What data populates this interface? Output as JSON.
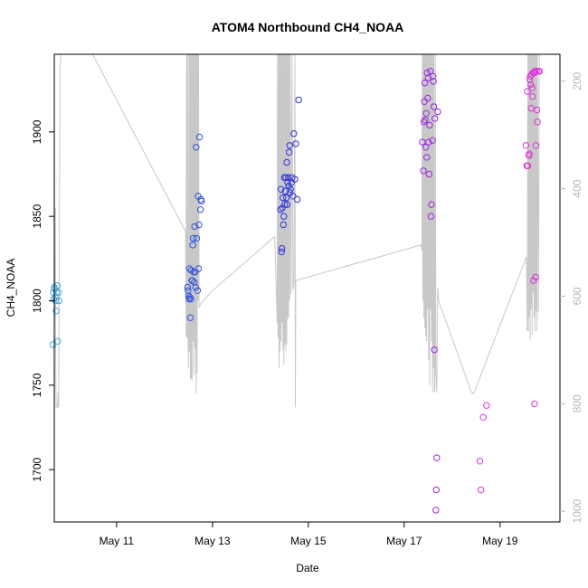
{
  "chart_data": {
    "type": "scatter",
    "title": "ATOM4 Northbound CH4_NOAA",
    "xlabel": "Date",
    "ylabel": "CH4_NOAA",
    "xlim": [
      9.7,
      20.25
    ],
    "ylim": [
      1669,
      1946
    ],
    "y2lim": [
      1020,
      150
    ],
    "x_ticks": [
      {
        "value": 11,
        "label": "May 11"
      },
      {
        "value": 13,
        "label": "May 13"
      },
      {
        "value": 15,
        "label": "May 15"
      },
      {
        "value": 17,
        "label": "May 17"
      },
      {
        "value": 19,
        "label": "May 19"
      }
    ],
    "y_ticks": [
      1700,
      1750,
      1800,
      1850,
      1900
    ],
    "y2_ticks": [
      200,
      400,
      600,
      800,
      1000
    ],
    "colors": {
      "May 10": "#3fa7e0",
      "May 12": "#2f52e0",
      "May 14": "#2f33e0",
      "May 17": "#9c28e0",
      "May 19": "#e030d8",
      "pressure_line": "#c8c8c8"
    },
    "series": [
      {
        "color": "#3fa7e0",
        "points": [
          [
            9.67,
            1774
          ],
          [
            9.68,
            1805
          ],
          [
            9.69,
            1801
          ],
          [
            9.7,
            1808
          ],
          [
            9.71,
            1807
          ],
          [
            9.72,
            1802
          ],
          [
            9.73,
            1800
          ],
          [
            9.74,
            1794
          ],
          [
            9.75,
            1805
          ],
          [
            9.76,
            1809
          ],
          [
            9.77,
            1776
          ],
          [
            9.79,
            1805
          ],
          [
            9.8,
            1800
          ]
        ]
      },
      {
        "color": "#2f52e0",
        "points": [
          [
            12.48,
            1808
          ],
          [
            12.49,
            1806
          ],
          [
            12.5,
            1803
          ],
          [
            12.51,
            1801
          ],
          [
            12.52,
            1819
          ],
          [
            12.53,
            1802
          ],
          [
            12.54,
            1790
          ],
          [
            12.55,
            1801
          ],
          [
            12.56,
            1818
          ],
          [
            12.57,
            1812
          ],
          [
            12.58,
            1812
          ],
          [
            12.59,
            1833
          ],
          [
            12.6,
            1837
          ],
          [
            12.61,
            1817
          ],
          [
            12.62,
            1811
          ],
          [
            12.63,
            1844
          ],
          [
            12.64,
            1817
          ],
          [
            12.65,
            1808
          ],
          [
            12.66,
            1891
          ],
          [
            12.67,
            1837
          ],
          [
            12.69,
            1806
          ],
          [
            12.7,
            1862
          ],
          [
            12.71,
            1819
          ],
          [
            12.72,
            1845
          ],
          [
            12.73,
            1897
          ],
          [
            12.75,
            1854
          ],
          [
            12.76,
            1860
          ],
          [
            12.77,
            1859
          ]
        ]
      },
      {
        "color": "#2f33e0",
        "points": [
          [
            14.42,
            1854
          ],
          [
            14.43,
            1866
          ],
          [
            14.44,
            1829
          ],
          [
            14.45,
            1831
          ],
          [
            14.46,
            1855
          ],
          [
            14.47,
            1861
          ],
          [
            14.48,
            1845
          ],
          [
            14.49,
            1850
          ],
          [
            14.5,
            1873
          ],
          [
            14.51,
            1857
          ],
          [
            14.52,
            1865
          ],
          [
            14.53,
            1873
          ],
          [
            14.54,
            1861
          ],
          [
            14.55,
            1882
          ],
          [
            14.56,
            1857
          ],
          [
            14.57,
            1870
          ],
          [
            14.58,
            1873
          ],
          [
            14.59,
            1868
          ],
          [
            14.6,
            1888
          ],
          [
            14.61,
            1892
          ],
          [
            14.62,
            1864
          ],
          [
            14.63,
            1866
          ],
          [
            14.65,
            1870
          ],
          [
            14.66,
            1873
          ],
          [
            14.68,
            1862
          ],
          [
            14.7,
            1899
          ],
          [
            14.72,
            1872
          ],
          [
            14.74,
            1893
          ],
          [
            14.77,
            1860
          ],
          [
            14.8,
            1919
          ]
        ]
      },
      {
        "color": "#9c28e0",
        "points": [
          [
            17.38,
            1894
          ],
          [
            17.4,
            1877
          ],
          [
            17.41,
            1906
          ],
          [
            17.42,
            1918
          ],
          [
            17.43,
            1929
          ],
          [
            17.44,
            1907
          ],
          [
            17.45,
            1891
          ],
          [
            17.46,
            1911
          ],
          [
            17.47,
            1885
          ],
          [
            17.48,
            1935
          ],
          [
            17.49,
            1920
          ],
          [
            17.5,
            1932
          ],
          [
            17.51,
            1894
          ],
          [
            17.52,
            1875
          ],
          [
            17.53,
            1904
          ],
          [
            17.55,
            1936
          ],
          [
            17.56,
            1850
          ],
          [
            17.57,
            1857
          ],
          [
            17.59,
            1895
          ],
          [
            17.6,
            1933
          ],
          [
            17.61,
            1930
          ],
          [
            17.62,
            1915
          ],
          [
            17.63,
            1771
          ],
          [
            17.64,
            1908
          ],
          [
            17.66,
            1676
          ],
          [
            17.67,
            1688
          ],
          [
            17.68,
            1707
          ],
          [
            17.7,
            1912
          ]
        ]
      },
      {
        "color": "#e030d8",
        "points": [
          [
            18.58,
            1705
          ],
          [
            18.6,
            1688
          ],
          [
            18.65,
            1731
          ],
          [
            18.72,
            1738
          ],
          [
            19.54,
            1892
          ],
          [
            19.56,
            1880
          ],
          [
            19.57,
            1924
          ],
          [
            19.58,
            1880
          ],
          [
            19.6,
            1886
          ],
          [
            19.61,
            1887
          ],
          [
            19.62,
            1931
          ],
          [
            19.63,
            1933
          ],
          [
            19.64,
            1928
          ],
          [
            19.65,
            1914
          ],
          [
            19.66,
            1934
          ],
          [
            19.67,
            1926
          ],
          [
            19.68,
            1921
          ],
          [
            19.69,
            1935
          ],
          [
            19.7,
            1812
          ],
          [
            19.71,
            1935
          ],
          [
            19.72,
            1739
          ],
          [
            19.73,
            1936
          ],
          [
            19.74,
            1814
          ],
          [
            19.75,
            1892
          ],
          [
            19.76,
            1936
          ],
          [
            19.77,
            1913
          ],
          [
            19.78,
            1906
          ],
          [
            19.8,
            1936
          ],
          [
            19.82,
            1936
          ]
        ]
      }
    ],
    "pressure_line": [
      [
        9.65,
        1874
      ],
      [
        9.66,
        1760
      ],
      [
        9.67,
        1840
      ],
      [
        9.68,
        1746
      ],
      [
        9.69,
        1815
      ],
      [
        9.7,
        1937
      ],
      [
        9.71,
        1790
      ],
      [
        9.72,
        1855
      ],
      [
        9.73,
        1760
      ],
      [
        9.74,
        1737
      ],
      [
        9.75,
        1737
      ],
      [
        9.76,
        1737
      ],
      [
        9.77,
        1737
      ],
      [
        9.78,
        1746
      ],
      [
        9.79,
        1737
      ],
      [
        9.8,
        1790
      ],
      [
        9.82,
        1940
      ],
      [
        9.84,
        1946
      ],
      [
        10.2,
        1946
      ],
      [
        10.5,
        1946
      ],
      [
        12.44,
        1841
      ],
      [
        12.45,
        1779
      ],
      [
        12.46,
        1946
      ],
      [
        12.47,
        1778
      ],
      [
        12.48,
        1946
      ],
      [
        12.49,
        1781
      ],
      [
        12.5,
        1760
      ],
      [
        12.51,
        1946
      ],
      [
        12.52,
        1770
      ],
      [
        12.53,
        1946
      ],
      [
        12.54,
        1753
      ],
      [
        12.55,
        1946
      ],
      [
        12.56,
        1754
      ],
      [
        12.57,
        1946
      ],
      [
        12.58,
        1753
      ],
      [
        12.59,
        1946
      ],
      [
        12.6,
        1776
      ],
      [
        12.61,
        1946
      ],
      [
        12.62,
        1756
      ],
      [
        12.63,
        1946
      ],
      [
        12.64,
        1772
      ],
      [
        12.65,
        1946
      ],
      [
        12.66,
        1745
      ],
      [
        12.67,
        1946
      ],
      [
        12.68,
        1757
      ],
      [
        12.69,
        1946
      ],
      [
        12.7,
        1800
      ],
      [
        12.71,
        1946
      ],
      [
        12.72,
        1796
      ],
      [
        12.75,
        1798
      ],
      [
        12.8,
        1800
      ],
      [
        13.0,
        1806
      ],
      [
        14.3,
        1838
      ],
      [
        14.35,
        1787
      ],
      [
        14.36,
        1946
      ],
      [
        14.37,
        1778
      ],
      [
        14.38,
        1946
      ],
      [
        14.39,
        1760
      ],
      [
        14.4,
        1946
      ],
      [
        14.41,
        1770
      ],
      [
        14.42,
        1946
      ],
      [
        14.43,
        1776
      ],
      [
        14.44,
        1946
      ],
      [
        14.45,
        1787
      ],
      [
        14.46,
        1946
      ],
      [
        14.47,
        1771
      ],
      [
        14.48,
        1946
      ],
      [
        14.49,
        1762
      ],
      [
        14.5,
        1946
      ],
      [
        14.51,
        1774
      ],
      [
        14.52,
        1946
      ],
      [
        14.53,
        1770
      ],
      [
        14.54,
        1946
      ],
      [
        14.55,
        1774
      ],
      [
        14.56,
        1946
      ],
      [
        14.57,
        1789
      ],
      [
        14.58,
        1946
      ],
      [
        14.59,
        1790
      ],
      [
        14.6,
        1946
      ],
      [
        14.61,
        1800
      ],
      [
        14.62,
        1946
      ],
      [
        14.64,
        1804
      ],
      [
        14.66,
        1946
      ],
      [
        14.68,
        1806
      ],
      [
        14.7,
        1810
      ],
      [
        14.72,
        1946
      ],
      [
        14.73,
        1737
      ],
      [
        14.74,
        1812
      ],
      [
        17.35,
        1833
      ],
      [
        17.37,
        1830
      ],
      [
        17.38,
        1946
      ],
      [
        17.39,
        1800
      ],
      [
        17.4,
        1946
      ],
      [
        17.41,
        1790
      ],
      [
        17.42,
        1946
      ],
      [
        17.43,
        1784
      ],
      [
        17.44,
        1946
      ],
      [
        17.45,
        1779
      ],
      [
        17.46,
        1946
      ],
      [
        17.47,
        1776
      ],
      [
        17.48,
        1946
      ],
      [
        17.49,
        1795
      ],
      [
        17.5,
        1946
      ],
      [
        17.51,
        1765
      ],
      [
        17.52,
        1946
      ],
      [
        17.53,
        1750
      ],
      [
        17.54,
        1946
      ],
      [
        17.55,
        1795
      ],
      [
        17.56,
        1946
      ],
      [
        17.57,
        1776
      ],
      [
        17.58,
        1946
      ],
      [
        17.59,
        1746
      ],
      [
        17.6,
        1946
      ],
      [
        17.61,
        1760
      ],
      [
        17.62,
        1946
      ],
      [
        17.63,
        1746
      ],
      [
        17.64,
        1746
      ],
      [
        17.65,
        1946
      ],
      [
        17.66,
        1760
      ],
      [
        17.68,
        1746
      ],
      [
        17.7,
        1808
      ],
      [
        17.72,
        1800
      ],
      [
        18.4,
        1746
      ],
      [
        18.45,
        1745
      ],
      [
        19.55,
        1826
      ],
      [
        19.57,
        1782
      ],
      [
        19.58,
        1946
      ],
      [
        19.59,
        1782
      ],
      [
        19.6,
        1946
      ],
      [
        19.61,
        1790
      ],
      [
        19.62,
        1946
      ],
      [
        19.63,
        1777
      ],
      [
        19.64,
        1946
      ],
      [
        19.65,
        1795
      ],
      [
        19.66,
        1946
      ],
      [
        19.67,
        1780
      ],
      [
        19.68,
        1946
      ],
      [
        19.69,
        1805
      ],
      [
        19.7,
        1946
      ],
      [
        19.71,
        1790
      ],
      [
        19.72,
        1946
      ],
      [
        19.73,
        1782
      ],
      [
        19.74,
        1946
      ],
      [
        19.75,
        1794
      ],
      [
        19.76,
        1946
      ],
      [
        19.77,
        1782
      ],
      [
        19.78,
        1946
      ],
      [
        19.8,
        1793
      ],
      [
        19.82,
        1946
      ]
    ]
  }
}
